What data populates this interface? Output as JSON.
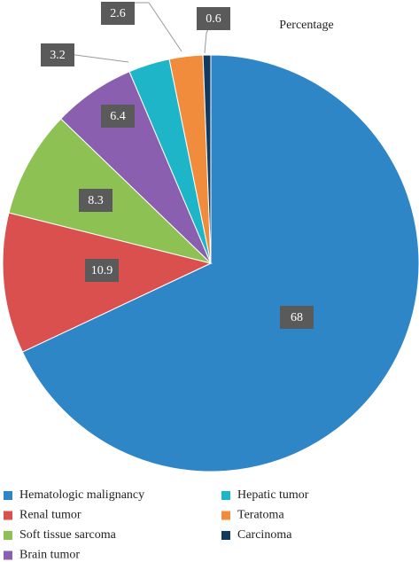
{
  "chart_data": {
    "type": "pie",
    "title": "Percentage",
    "categories": [
      "Hematologic malignancy",
      "Renal tumor",
      "Soft tissue sarcoma",
      "Brain tumor",
      "Hepatic tumor",
      "Teratoma",
      "Carcinoma"
    ],
    "values": [
      68,
      10.9,
      8.3,
      6.4,
      3.2,
      2.6,
      0.6
    ],
    "colors": [
      "#2f86c6",
      "#d9504f",
      "#8dc153",
      "#8a5fb0",
      "#1fb5c9",
      "#f08c3c",
      "#123a5e"
    ]
  }
}
